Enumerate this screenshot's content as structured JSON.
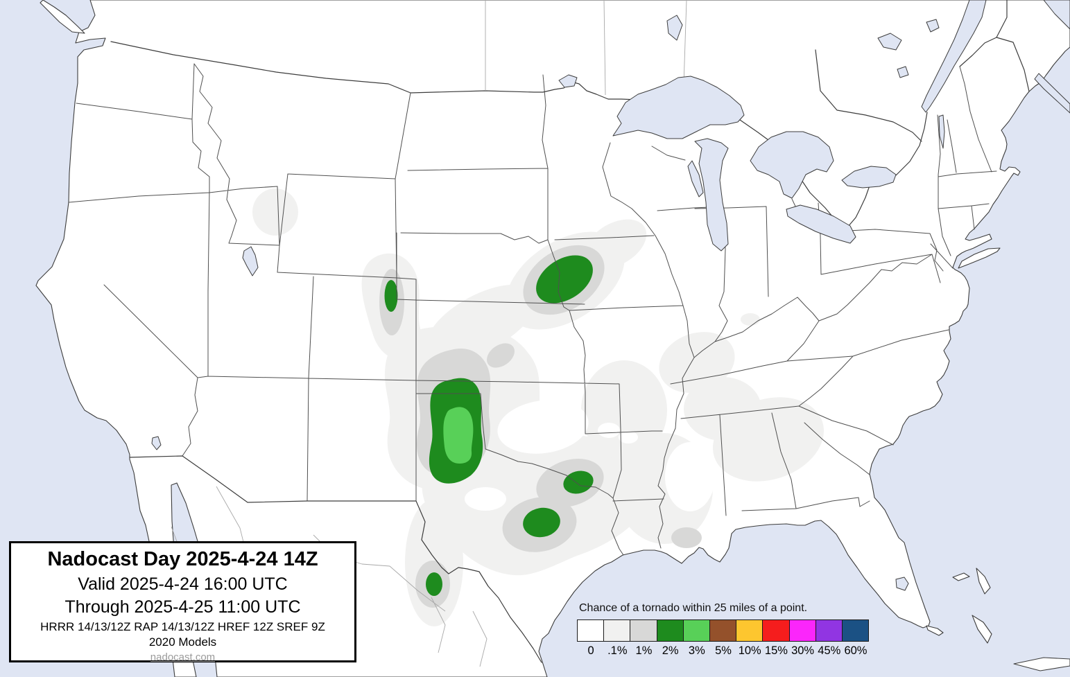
{
  "title_box": {
    "title": "Nadocast Day 2025-4-24 14Z",
    "valid_line": "Valid 2025-4-24 16:00 UTC",
    "through_line": "Through 2025-4-25 11:00 UTC",
    "models_line": "HRRR 14/13/12Z RAP 14/13/12Z HREF 12Z SREF 9Z",
    "models_year_line": "2020 Models",
    "website": "nadocast.com"
  },
  "legend": {
    "title": "Chance of a tornado within 25 miles of a point.",
    "entries": [
      {
        "label": "0",
        "color": "#ffffff"
      },
      {
        "label": ".1%",
        "color": "#f1f1f0"
      },
      {
        "label": "1%",
        "color": "#d8d8d7"
      },
      {
        "label": "2%",
        "color": "#1e8b1e"
      },
      {
        "label": "3%",
        "color": "#58d058"
      },
      {
        "label": "5%",
        "color": "#94512b"
      },
      {
        "label": "10%",
        "color": "#fdc62f"
      },
      {
        "label": "15%",
        "color": "#f51d1d"
      },
      {
        "label": "30%",
        "color": "#fb26fb"
      },
      {
        "label": "45%",
        "color": "#9135e2"
      },
      {
        "label": "60%",
        "color": "#1b5184"
      }
    ]
  },
  "map": {
    "colors": {
      "water": "#dfe5f3",
      "land": "#ffffff",
      "prob_01": "#f1f1f0",
      "prob_1": "#d8d8d7",
      "prob_2": "#1e8b1e",
      "prob_3": "#58d058",
      "state_border": "#4f4f4f",
      "coastline": "#3c3c3c"
    }
  }
}
